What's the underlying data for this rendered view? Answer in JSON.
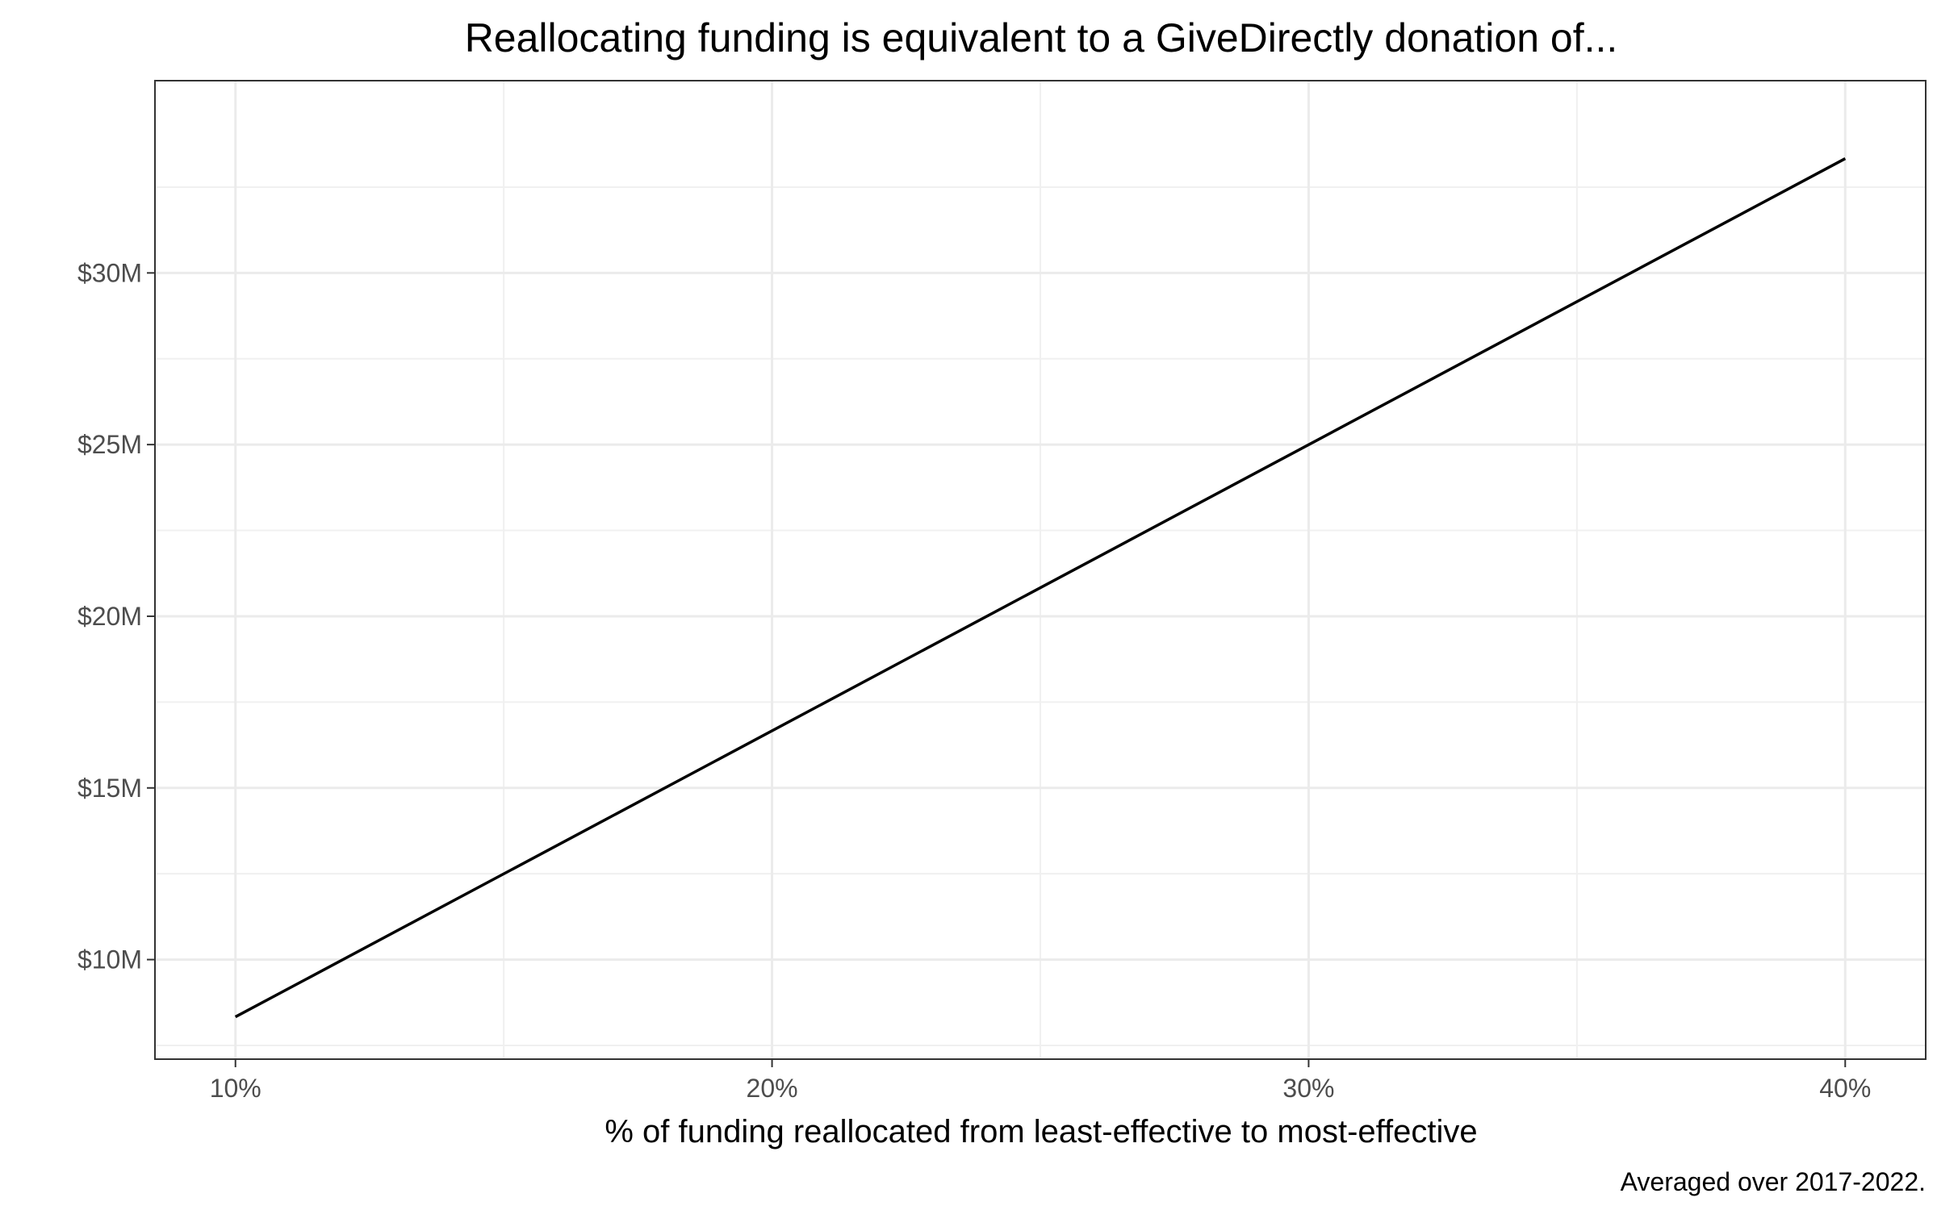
{
  "chart_data": {
    "type": "line",
    "title": "Reallocating funding is equivalent to a GiveDirectly donation of...",
    "xlabel": "% of funding reallocated from least-effective to most-effective",
    "ylabel": "",
    "caption": "Averaged over 2017-2022.",
    "x_ticks": [
      10,
      20,
      30,
      40
    ],
    "x_tick_labels": [
      "10%",
      "20%",
      "30%",
      "40%"
    ],
    "y_ticks": [
      10,
      15,
      20,
      25,
      30
    ],
    "y_tick_labels": [
      "$10M",
      "$15M",
      "$20M",
      "$25M",
      "$30M"
    ],
    "xlim": [
      8.5,
      41.5
    ],
    "ylim": [
      7.1,
      35.6
    ],
    "grid": true,
    "series": [
      {
        "x": [
          10,
          40
        ],
        "y": [
          8.33,
          33.33
        ],
        "color": "#000000"
      }
    ]
  }
}
